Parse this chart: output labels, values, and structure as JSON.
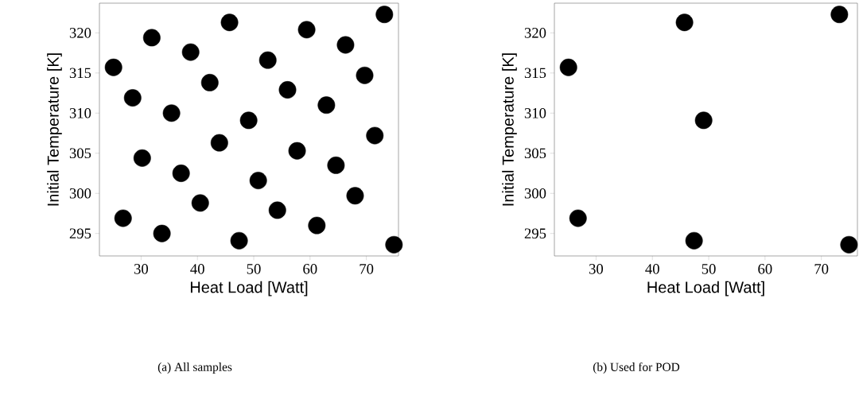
{
  "chart_data": [
    {
      "type": "scatter",
      "xlabel": "Heat Load [Watt]",
      "ylabel": "Initial Temperature [K]",
      "annotations": [
        "(a) All samples"
      ],
      "marker": "circle",
      "color": "#000000",
      "x": [
        25.1,
        26.8,
        28.5,
        30.2,
        31.9,
        33.7,
        35.4,
        37.1,
        38.8,
        40.5,
        42.2,
        43.9,
        45.7,
        47.4,
        49.1,
        50.8,
        52.5,
        54.2,
        56.0,
        57.7,
        59.4,
        61.2,
        62.9,
        64.6,
        66.3,
        68.0,
        69.7,
        71.5,
        73.2,
        74.9
      ],
      "values": [
        315.7,
        296.9,
        311.9,
        304.4,
        319.4,
        295.0,
        310.0,
        302.5,
        317.6,
        298.8,
        313.8,
        306.3,
        321.3,
        294.1,
        309.1,
        301.6,
        316.6,
        297.9,
        312.9,
        305.3,
        320.4,
        296.0,
        311.0,
        303.5,
        318.5,
        299.7,
        314.7,
        307.2,
        322.3,
        293.6
      ],
      "xlim": [
        22.6,
        75.7
      ],
      "ylim": [
        292.2,
        323.7
      ],
      "xticks": [
        30,
        40,
        50,
        60,
        70
      ],
      "yticks": [
        295,
        300,
        305,
        310,
        315,
        320
      ],
      "grid": false
    },
    {
      "type": "scatter",
      "xlabel": "Heat Load [Watt]",
      "ylabel": "Initial Temperature [K]",
      "annotations": [
        "(b) Used for POD"
      ],
      "marker": "circle",
      "color": "#000000",
      "x": [
        25.1,
        26.8,
        45.7,
        47.4,
        49.1,
        73.2,
        74.9
      ],
      "values": [
        315.7,
        296.9,
        321.3,
        294.1,
        309.1,
        322.3,
        293.6
      ],
      "xlim": [
        22.6,
        76.4
      ],
      "ylim": [
        292.2,
        323.7
      ],
      "xticks": [
        30,
        40,
        50,
        60,
        70
      ],
      "yticks": [
        295,
        300,
        305,
        310,
        315,
        320
      ],
      "grid": false
    }
  ]
}
